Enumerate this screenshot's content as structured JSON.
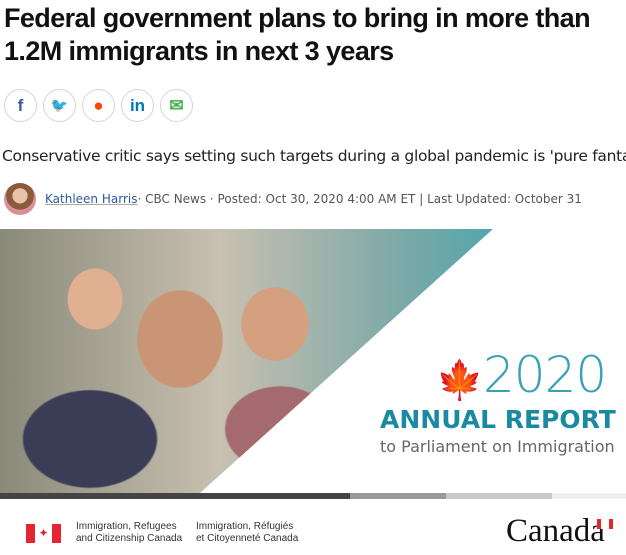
{
  "headline": "Federal government plans to bring in more than 1.2M immigrants in next 3 years",
  "share": [
    {
      "icon": "facebook-icon",
      "glyph": "f",
      "color": "#3b5998"
    },
    {
      "icon": "twitter-icon",
      "glyph": "🐦",
      "color": "#1da1f2"
    },
    {
      "icon": "reddit-icon",
      "glyph": "●",
      "color": "#ff4500"
    },
    {
      "icon": "linkedin-icon",
      "glyph": "in",
      "color": "#0077b5"
    },
    {
      "icon": "email-icon",
      "glyph": "✉",
      "color": "#4caf50"
    }
  ],
  "deck": "Conservative critic says setting such targets during a global pandemic is 'pure fantas",
  "byline": {
    "author": "Kathleen Harris",
    "rest": " · CBC News · Posted: Oct 30, 2020 4:00 AM ET | Last Updated: October 31"
  },
  "report": {
    "year": "2020",
    "title": "ANNUAL REPORT",
    "subtitle": "to Parliament on Immigration"
  },
  "footer": {
    "dept_en_1": "Immigration, Refugees",
    "dept_en_2": "and Citizenship Canada",
    "dept_fr_1": "Immigration, Réfugiés",
    "dept_fr_2": "et Citoyenneté Canada",
    "wordmark": "Canada"
  },
  "colors": {
    "accent": "#1a8aa3",
    "year": "#3aa1b7",
    "maple": "#e8262f"
  }
}
